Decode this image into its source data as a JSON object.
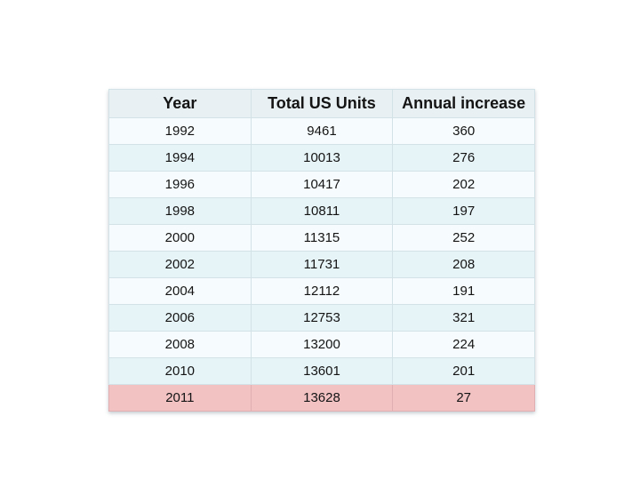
{
  "colors": {
    "header_bg": "#e8f0f3",
    "row_odd_bg": "#f6fbfd",
    "row_even_bg": "#e6f3f7",
    "highlight_bg": "#f2c2c3",
    "highlight_border": "#dfafb1",
    "inner_border": "#d3e2e7",
    "outer_border": "#cfdfe5",
    "text": "#141414",
    "page_bg": "#ffffff"
  },
  "chart_data": {
    "type": "table",
    "title": "",
    "columns": [
      "Year",
      "Total US Units",
      "Annual increase"
    ],
    "rows": [
      [
        "1992",
        "9461",
        "360"
      ],
      [
        "1994",
        "10013",
        "276"
      ],
      [
        "1996",
        "10417",
        "202"
      ],
      [
        "1998",
        "10811",
        "197"
      ],
      [
        "2000",
        "11315",
        "252"
      ],
      [
        "2002",
        "11731",
        "208"
      ],
      [
        "2004",
        "12112",
        "191"
      ],
      [
        "2006",
        "12753",
        "321"
      ],
      [
        "2008",
        "13200",
        "224"
      ],
      [
        "2010",
        "13601",
        "201"
      ],
      [
        "2011",
        "13628",
        "27"
      ]
    ],
    "highlighted_row_index": 10,
    "layout": {
      "legend": "none",
      "grid": "table-borders",
      "position": "centered table on plain white slide",
      "row_striping": "alternating pale-white / pale-cyan, final row pink highlight"
    }
  }
}
